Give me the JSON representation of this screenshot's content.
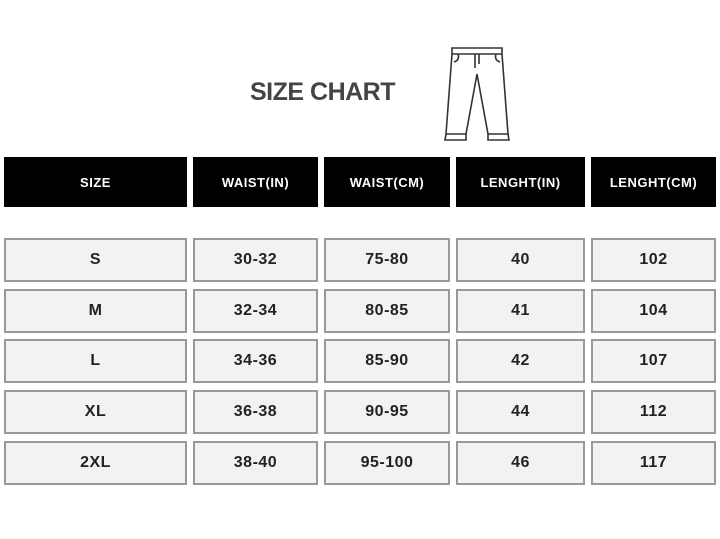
{
  "title": "SIZE CHART",
  "icon": "pants-icon",
  "headers": [
    "SIZE",
    "WAIST(IN)",
    "WAIST(CM)",
    "LENGHT(IN)",
    "LENGHT(CM)"
  ],
  "rows": [
    [
      "S",
      "30-32",
      "75-80",
      "40",
      "102"
    ],
    [
      "M",
      "32-34",
      "80-85",
      "41",
      "104"
    ],
    [
      "L",
      "34-36",
      "85-90",
      "42",
      "107"
    ],
    [
      "XL",
      "36-38",
      "90-95",
      "44",
      "112"
    ],
    [
      "2XL",
      "38-40",
      "95-100",
      "46",
      "117"
    ]
  ]
}
